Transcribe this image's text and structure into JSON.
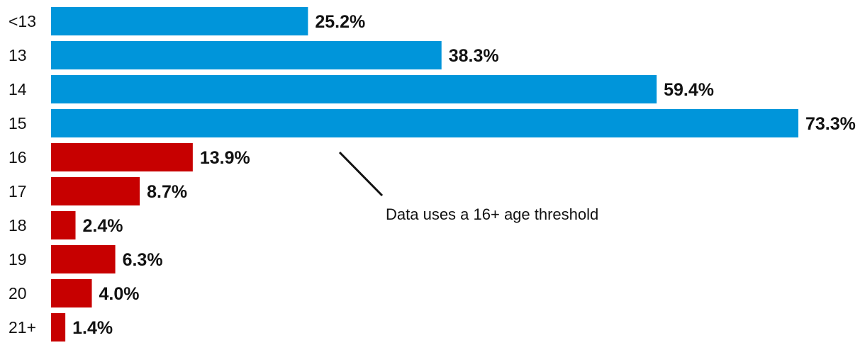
{
  "chart_data": {
    "type": "bar",
    "orientation": "horizontal",
    "categories": [
      "<13",
      "13",
      "14",
      "15",
      "16",
      "17",
      "18",
      "19",
      "20",
      "21+"
    ],
    "values": [
      25.2,
      38.3,
      59.4,
      73.3,
      13.9,
      8.7,
      2.4,
      6.3,
      4.0,
      1.4
    ],
    "value_labels": [
      "25.2%",
      "38.3%",
      "59.4%",
      "73.3%",
      "13.9%",
      "8.7%",
      "2.4%",
      "6.3%",
      "4.0%",
      "1.4%"
    ],
    "bar_colors": [
      "#0095da",
      "#0095da",
      "#0095da",
      "#0095da",
      "#c70000",
      "#c70000",
      "#c70000",
      "#c70000",
      "#c70000",
      "#c70000"
    ],
    "xlim": [
      0,
      73.3
    ],
    "title": "",
    "xlabel": "",
    "ylabel": "",
    "grid": false,
    "legend": "none",
    "annotations": [
      {
        "text": "Data uses a 16+ age threshold"
      }
    ]
  }
}
